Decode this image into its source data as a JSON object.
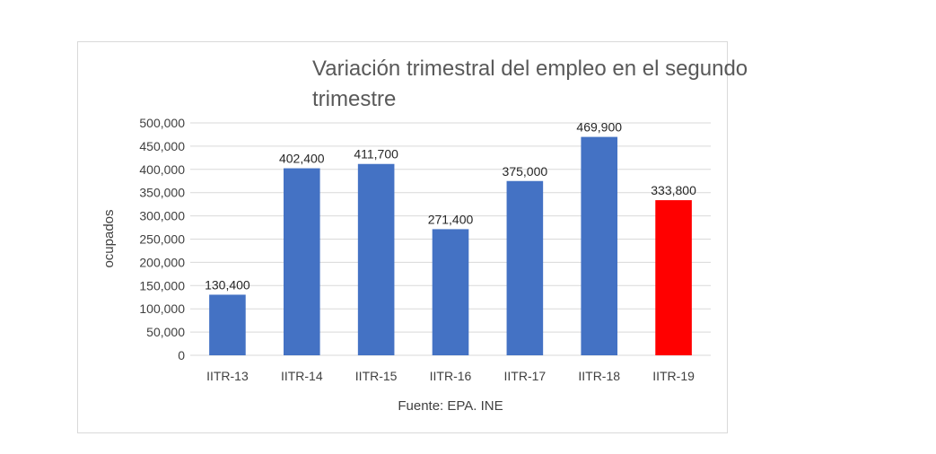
{
  "chart_data": {
    "type": "bar",
    "title": "Variación trimestral del empleo en el segundo trimestre",
    "xlabel": "",
    "ylabel": "ocupados",
    "ylim": [
      0,
      500000
    ],
    "ytick_step": 50000,
    "ytick_labels": [
      "0",
      "50,000",
      "100,000",
      "150,000",
      "200,000",
      "250,000",
      "300,000",
      "350,000",
      "400,000",
      "450,000",
      "500,000"
    ],
    "grid": true,
    "categories": [
      "IITR-13",
      "IITR-14",
      "IITR-15",
      "IITR-16",
      "IITR-17",
      "IITR-18",
      "IITR-19"
    ],
    "values": [
      130400,
      402400,
      411700,
      271400,
      375000,
      469900,
      333800
    ],
    "value_labels": [
      "130,400",
      "402,400",
      "411,700",
      "271,400",
      "375,000",
      "469,900",
      "333,800"
    ],
    "bar_colors": [
      "#4472C4",
      "#4472C4",
      "#4472C4",
      "#4472C4",
      "#4472C4",
      "#4472C4",
      "#FF0000"
    ],
    "source_note": "Fuente: EPA. INE"
  },
  "colors": {
    "series": "#4472C4",
    "highlight": "#FF0000",
    "grid": "#d9d9d9",
    "text": "#404040"
  }
}
